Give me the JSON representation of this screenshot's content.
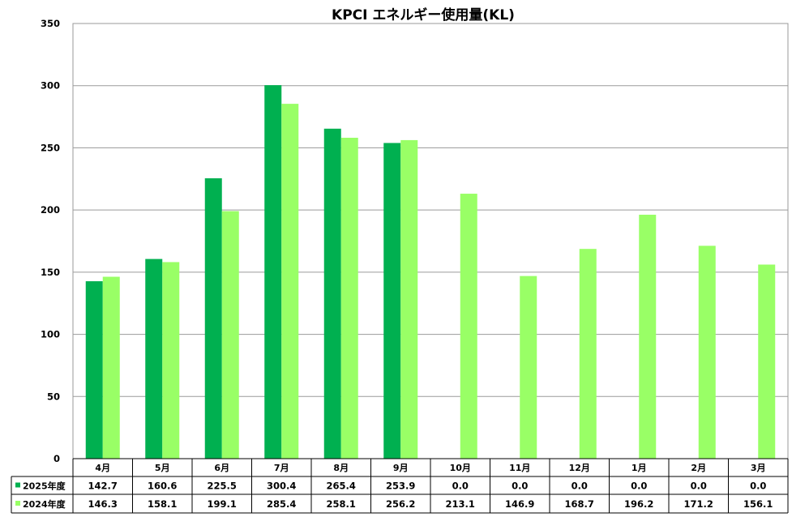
{
  "chart_data": {
    "type": "bar",
    "title": "KPCI エネルギー使用量(KL)",
    "categories": [
      "4月",
      "5月",
      "6月",
      "7月",
      "8月",
      "9月",
      "10月",
      "11月",
      "12月",
      "1月",
      "2月",
      "3月"
    ],
    "series": [
      {
        "name": "2025年度",
        "color": "#00b050",
        "values": [
          142.7,
          160.6,
          225.5,
          300.4,
          265.4,
          253.9,
          0.0,
          0.0,
          0.0,
          0.0,
          0.0,
          0.0
        ],
        "labels": [
          "142.7",
          "160.6",
          "225.5",
          "300.4",
          "265.4",
          "253.9",
          "0.0",
          "0.0",
          "0.0",
          "0.0",
          "0.0",
          "0.0"
        ]
      },
      {
        "name": "2024年度",
        "color": "#99ff66",
        "values": [
          146.3,
          158.1,
          199.1,
          285.4,
          258.1,
          256.2,
          213.1,
          146.9,
          168.7,
          196.2,
          171.2,
          156.1
        ],
        "labels": [
          "146.3",
          "158.1",
          "199.1",
          "285.4",
          "258.1",
          "256.2",
          "213.1",
          "146.9",
          "168.7",
          "196.2",
          "171.2",
          "156.1"
        ]
      }
    ],
    "ylim": [
      0,
      350
    ],
    "yticks": [
      "0",
      "50",
      "100",
      "150",
      "200",
      "250",
      "300",
      "350"
    ],
    "grid": true,
    "legend_placement": "data-table"
  }
}
